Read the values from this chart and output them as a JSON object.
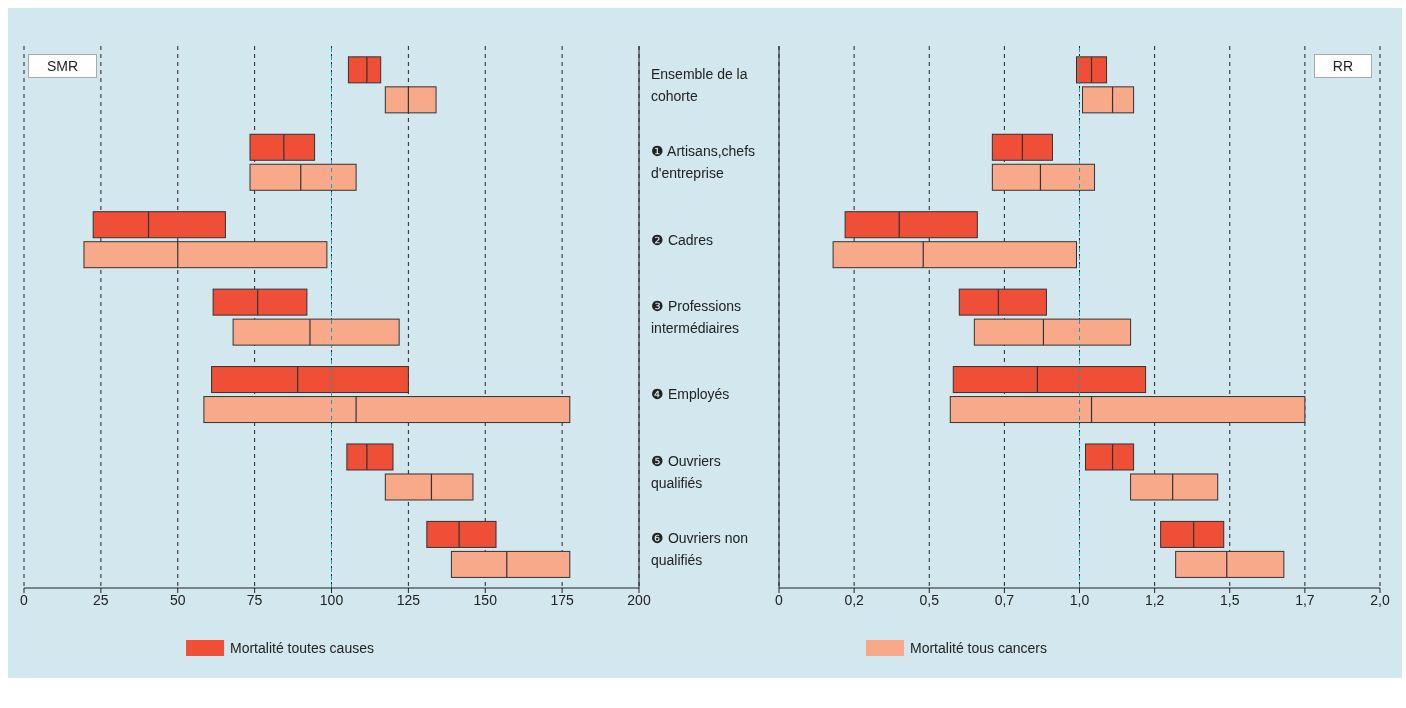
{
  "chart_data": [
    {
      "type": "box",
      "orientation": "horizontal",
      "xlabel": "SMR",
      "categories": [
        "Ensemble de la cohorte",
        "❶ Artisans,chefs d'entreprise",
        "❷ Cadres",
        "❸ Professions intermédiaires",
        "❹ Employés",
        "❺ Ouvriers qualifiés",
        "❻ Ouvriers non qualifiés"
      ],
      "series": [
        {
          "name": "Mortalité toutes causes",
          "color": "#ef4f37",
          "boxes": [
            {
              "low": 105.5,
              "q1": 105.5,
              "median": 111.5,
              "q3": 116,
              "high": 116
            },
            {
              "low": 73.5,
              "q1": 73.5,
              "median": 84.5,
              "q3": 94.5,
              "high": 94.5
            },
            {
              "low": 22.5,
              "q1": 22.5,
              "median": 40.5,
              "q3": 65.5,
              "high": 65.5
            },
            {
              "low": 61.5,
              "q1": 61.5,
              "median": 76,
              "q3": 92,
              "high": 92
            },
            {
              "low": 61,
              "q1": 61,
              "median": 89,
              "q3": 125,
              "high": 125
            },
            {
              "low": 105,
              "q1": 105,
              "median": 111.5,
              "q3": 120,
              "high": 120
            },
            {
              "low": 131,
              "q1": 131,
              "median": 141.5,
              "q3": 153.5,
              "high": 153.5
            }
          ]
        },
        {
          "name": "Mortalité tous cancers",
          "color": "#f7a98a",
          "boxes": [
            {
              "low": 117.5,
              "q1": 117.5,
              "median": 125,
              "q3": 134,
              "high": 134
            },
            {
              "low": 73.5,
              "q1": 73.5,
              "median": 90,
              "q3": 108,
              "high": 108
            },
            {
              "low": 19.5,
              "q1": 19.5,
              "median": 50,
              "q3": 98.5,
              "high": 98.5
            },
            {
              "low": 68,
              "q1": 68,
              "median": 93,
              "q3": 122,
              "high": 122
            },
            {
              "low": 58.5,
              "q1": 58.5,
              "median": 108,
              "q3": 177.5,
              "high": 177.5
            },
            {
              "low": 117.5,
              "q1": 117.5,
              "median": 132.5,
              "q3": 146,
              "high": 146
            },
            {
              "low": 139,
              "q1": 139,
              "median": 157,
              "q3": 177.5,
              "high": 177.5
            }
          ]
        }
      ],
      "xlim": [
        0,
        200
      ],
      "xticks": [
        0,
        25,
        50,
        75,
        100,
        125,
        150,
        175,
        200
      ],
      "grid": "x",
      "ref_lines": [
        {
          "axis": "x",
          "value": 100,
          "color": "#1a9db3",
          "line_style": "dashed"
        }
      ],
      "legend": "bottom"
    },
    {
      "type": "box",
      "orientation": "horizontal",
      "xlabel": "RR",
      "tick_labels": "x",
      "series": [
        {
          "color": "#ef4f37",
          "boxes": [
            {
              "low": 0.99,
              "q1": 0.99,
              "median": 1.04,
              "q3": 1.09,
              "high": 1.09
            },
            {
              "low": 0.71,
              "q1": 0.71,
              "median": 0.81,
              "q3": 0.91,
              "high": 0.91
            },
            {
              "low": 0.22,
              "q1": 0.22,
              "median": 0.4,
              "q3": 0.66,
              "high": 0.66
            },
            {
              "low": 0.6,
              "q1": 0.6,
              "median": 0.73,
              "q3": 0.89,
              "high": 0.89
            },
            {
              "low": 0.58,
              "q1": 0.58,
              "median": 0.86,
              "q3": 1.22,
              "high": 1.22
            },
            {
              "low": 1.02,
              "q1": 1.02,
              "median": 1.11,
              "q3": 1.18,
              "high": 1.18
            },
            {
              "low": 1.27,
              "q1": 1.27,
              "median": 1.38,
              "q3": 1.48,
              "high": 1.48
            }
          ]
        },
        {
          "color": "#f7a98a",
          "boxes": [
            {
              "low": 1.01,
              "q1": 1.01,
              "median": 1.11,
              "q3": 1.18,
              "high": 1.18
            },
            {
              "low": 0.71,
              "q1": 0.71,
              "median": 0.87,
              "q3": 1.05,
              "high": 1.05
            },
            {
              "low": 0.18,
              "q1": 0.18,
              "median": 0.48,
              "q3": 0.99,
              "high": 0.99
            },
            {
              "low": 0.65,
              "q1": 0.65,
              "median": 0.88,
              "q3": 1.17,
              "high": 1.17
            },
            {
              "low": 0.57,
              "q1": 0.57,
              "median": 1.04,
              "q3": 1.75,
              "high": 1.75
            },
            {
              "low": 1.17,
              "q1": 1.17,
              "median": 1.31,
              "q3": 1.46,
              "high": 1.46
            },
            {
              "low": 1.32,
              "q1": 1.32,
              "median": 1.49,
              "q3": 1.68,
              "high": 1.68
            }
          ]
        }
      ],
      "xlim": [
        0,
        2
      ],
      "xticks": [
        0,
        {
          "value": 0.25,
          "label": "0,2"
        },
        {
          "value": 0.5,
          "label": "0,5"
        },
        {
          "value": 0.75,
          "label": "0,7"
        },
        {
          "value": 1,
          "label": "1,0"
        },
        {
          "value": 1.25,
          "label": "1,2"
        },
        {
          "value": 1.5,
          "label": "1,5"
        },
        {
          "value": 1.75,
          "label": "1,7"
        },
        {
          "value": 2,
          "label": "2,0"
        }
      ],
      "grid": "x",
      "ref_lines": [
        {
          "axis": "x",
          "value": 1,
          "color": "#1a9db3",
          "line_style": "dashed"
        }
      ]
    }
  ]
}
